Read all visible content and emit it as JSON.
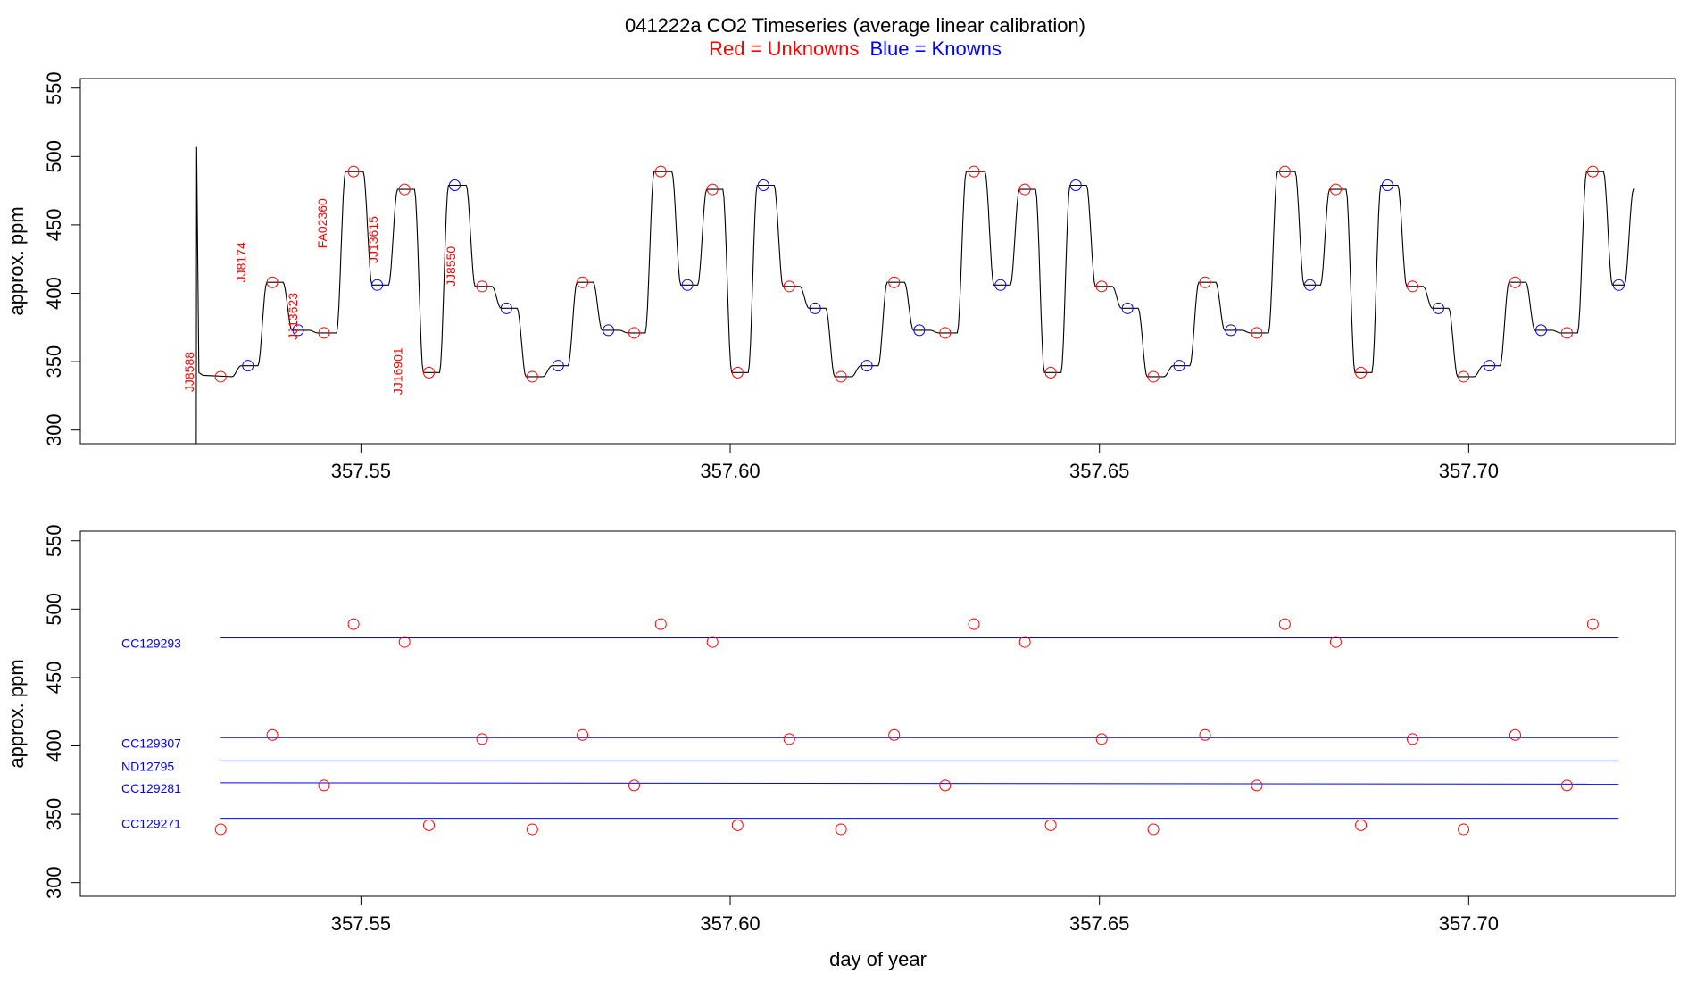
{
  "title": {
    "main": "041222a   CO2 Timeseries (average linear calibration)",
    "legend_red": "Red = Unknowns",
    "legend_blue": "Blue = Knowns",
    "red_color": "#ff0000",
    "blue_color": "#0000ff"
  },
  "chart_data": [
    {
      "type": "line",
      "panel": "timeseries",
      "xlim": [
        357.512,
        357.728
      ],
      "ylim": [
        290,
        557
      ],
      "x_ticks": [
        357.55,
        357.6,
        357.65,
        357.7
      ],
      "x_tick_labels": [
        "357.55",
        "357.60",
        "357.65",
        "357.70"
      ],
      "y_ticks": [
        300,
        350,
        400,
        450,
        500,
        550
      ],
      "y_tick_labels": [
        "300",
        "350",
        "400",
        "450",
        "500",
        "550"
      ],
      "ylabel": "approx. ppm",
      "xlabel": "",
      "line_color": "#000000",
      "spike": {
        "x": 357.5277,
        "y_bottom": 290,
        "y_top": 507,
        "y_base": 342
      },
      "trace_end_x": 357.7225,
      "levels": [
        {
          "x": 357.531,
          "y": 339,
          "type": "unknown",
          "label": "JJ8588"
        },
        {
          "x": 357.5347,
          "y": 347,
          "type": "known",
          "label": ""
        },
        {
          "x": 357.538,
          "y": 408,
          "type": "unknown",
          "label": "JJ8174"
        },
        {
          "x": 357.5415,
          "y": 373,
          "type": "known",
          "label": ""
        },
        {
          "x": 357.545,
          "y": 371,
          "type": "unknown",
          "label": "JJ13623"
        },
        {
          "x": 357.549,
          "y": 489,
          "type": "unknown",
          "label": "FA02360"
        },
        {
          "x": 357.5522,
          "y": 406,
          "type": "known",
          "label": ""
        },
        {
          "x": 357.5559,
          "y": 476,
          "type": "unknown",
          "label": "JJ13615"
        },
        {
          "x": 357.5592,
          "y": 342,
          "type": "unknown",
          "label": "JJ16901"
        },
        {
          "x": 357.5627,
          "y": 479,
          "type": "known",
          "label": ""
        },
        {
          "x": 357.5664,
          "y": 405,
          "type": "unknown",
          "label": "JJ8550"
        },
        {
          "x": 357.5697,
          "y": 389,
          "type": "known",
          "label": ""
        },
        {
          "x": 357.5732,
          "y": 339,
          "type": "unknown",
          "label": ""
        },
        {
          "x": 357.5767,
          "y": 347,
          "type": "known",
          "label": ""
        },
        {
          "x": 357.58,
          "y": 408,
          "type": "unknown",
          "label": ""
        },
        {
          "x": 357.5835,
          "y": 373,
          "type": "known",
          "label": ""
        },
        {
          "x": 357.587,
          "y": 371,
          "type": "unknown",
          "label": ""
        },
        {
          "x": 357.5906,
          "y": 489,
          "type": "unknown",
          "label": ""
        },
        {
          "x": 357.5942,
          "y": 406,
          "type": "known",
          "label": ""
        },
        {
          "x": 357.5976,
          "y": 476,
          "type": "unknown",
          "label": ""
        },
        {
          "x": 357.601,
          "y": 342,
          "type": "unknown",
          "label": ""
        },
        {
          "x": 357.6045,
          "y": 479,
          "type": "known",
          "label": ""
        },
        {
          "x": 357.608,
          "y": 405,
          "type": "unknown",
          "label": ""
        },
        {
          "x": 357.6115,
          "y": 389,
          "type": "known",
          "label": ""
        },
        {
          "x": 357.615,
          "y": 339,
          "type": "unknown",
          "label": ""
        },
        {
          "x": 357.6185,
          "y": 347,
          "type": "known",
          "label": ""
        },
        {
          "x": 357.6222,
          "y": 408,
          "type": "unknown",
          "label": ""
        },
        {
          "x": 357.6256,
          "y": 373,
          "type": "known",
          "label": ""
        },
        {
          "x": 357.6291,
          "y": 371,
          "type": "unknown",
          "label": ""
        },
        {
          "x": 357.633,
          "y": 489,
          "type": "unknown",
          "label": ""
        },
        {
          "x": 357.6366,
          "y": 406,
          "type": "known",
          "label": ""
        },
        {
          "x": 357.6399,
          "y": 476,
          "type": "unknown",
          "label": ""
        },
        {
          "x": 357.6434,
          "y": 342,
          "type": "unknown",
          "label": ""
        },
        {
          "x": 357.6468,
          "y": 479,
          "type": "known",
          "label": ""
        },
        {
          "x": 357.6503,
          "y": 405,
          "type": "unknown",
          "label": ""
        },
        {
          "x": 357.6538,
          "y": 389,
          "type": "known",
          "label": ""
        },
        {
          "x": 357.6573,
          "y": 339,
          "type": "unknown",
          "label": ""
        },
        {
          "x": 357.6608,
          "y": 347,
          "type": "known",
          "label": ""
        },
        {
          "x": 357.6643,
          "y": 408,
          "type": "unknown",
          "label": ""
        },
        {
          "x": 357.6678,
          "y": 373,
          "type": "known",
          "label": ""
        },
        {
          "x": 357.6713,
          "y": 371,
          "type": "unknown",
          "label": ""
        },
        {
          "x": 357.6751,
          "y": 489,
          "type": "unknown",
          "label": ""
        },
        {
          "x": 357.6785,
          "y": 406,
          "type": "known",
          "label": ""
        },
        {
          "x": 357.682,
          "y": 476,
          "type": "unknown",
          "label": ""
        },
        {
          "x": 357.6854,
          "y": 342,
          "type": "unknown",
          "label": ""
        },
        {
          "x": 357.689,
          "y": 479,
          "type": "known",
          "label": ""
        },
        {
          "x": 357.6924,
          "y": 405,
          "type": "unknown",
          "label": ""
        },
        {
          "x": 357.6959,
          "y": 389,
          "type": "known",
          "label": ""
        },
        {
          "x": 357.6993,
          "y": 339,
          "type": "unknown",
          "label": ""
        },
        {
          "x": 357.7028,
          "y": 347,
          "type": "known",
          "label": ""
        },
        {
          "x": 357.7063,
          "y": 408,
          "type": "unknown",
          "label": ""
        },
        {
          "x": 357.7098,
          "y": 373,
          "type": "known",
          "label": ""
        },
        {
          "x": 357.7133,
          "y": 371,
          "type": "unknown",
          "label": ""
        },
        {
          "x": 357.7168,
          "y": 489,
          "type": "unknown",
          "label": ""
        },
        {
          "x": 357.7203,
          "y": 406,
          "type": "known",
          "label": ""
        },
        {
          "x": 357.7225,
          "y": 476,
          "type": "none",
          "label": ""
        }
      ]
    },
    {
      "type": "scatter",
      "panel": "calibration",
      "xlim": [
        357.512,
        357.728
      ],
      "ylim": [
        290,
        557
      ],
      "x_ticks": [
        357.55,
        357.6,
        357.65,
        357.7
      ],
      "x_tick_labels": [
        "357.55",
        "357.60",
        "357.65",
        "357.70"
      ],
      "y_ticks": [
        300,
        350,
        400,
        450,
        500,
        550
      ],
      "y_tick_labels": [
        "300",
        "350",
        "400",
        "450",
        "500",
        "550"
      ],
      "ylabel": "approx. ppm",
      "xlabel": "day of year",
      "standards": [
        {
          "name": "CC129293",
          "y_start": 479,
          "y_end": 479,
          "x_start": 357.531,
          "x_end": 357.7203
        },
        {
          "name": "CC129307",
          "y_start": 406,
          "y_end": 406,
          "x_start": 357.531,
          "x_end": 357.7203
        },
        {
          "name": "ND12795",
          "y_start": 389,
          "y_end": 389,
          "x_start": 357.531,
          "x_end": 357.7203
        },
        {
          "name": "CC129281",
          "y_start": 373,
          "y_end": 372,
          "x_start": 357.531,
          "x_end": 357.7203
        },
        {
          "name": "CC129271",
          "y_start": 347,
          "y_end": 347,
          "x_start": 357.531,
          "x_end": 357.7203
        }
      ],
      "points": [
        {
          "x": 357.531,
          "y": 339
        },
        {
          "x": 357.538,
          "y": 408
        },
        {
          "x": 357.545,
          "y": 371
        },
        {
          "x": 357.549,
          "y": 489
        },
        {
          "x": 357.5559,
          "y": 476
        },
        {
          "x": 357.5592,
          "y": 342
        },
        {
          "x": 357.5664,
          "y": 405
        },
        {
          "x": 357.5732,
          "y": 339
        },
        {
          "x": 357.58,
          "y": 408
        },
        {
          "x": 357.587,
          "y": 371
        },
        {
          "x": 357.5906,
          "y": 489
        },
        {
          "x": 357.5976,
          "y": 476
        },
        {
          "x": 357.601,
          "y": 342
        },
        {
          "x": 357.608,
          "y": 405
        },
        {
          "x": 357.615,
          "y": 339
        },
        {
          "x": 357.6222,
          "y": 408
        },
        {
          "x": 357.6291,
          "y": 371
        },
        {
          "x": 357.633,
          "y": 489
        },
        {
          "x": 357.6399,
          "y": 476
        },
        {
          "x": 357.6434,
          "y": 342
        },
        {
          "x": 357.6503,
          "y": 405
        },
        {
          "x": 357.6573,
          "y": 339
        },
        {
          "x": 357.6643,
          "y": 408
        },
        {
          "x": 357.6713,
          "y": 371
        },
        {
          "x": 357.6751,
          "y": 489
        },
        {
          "x": 357.682,
          "y": 476
        },
        {
          "x": 357.6854,
          "y": 342
        },
        {
          "x": 357.6924,
          "y": 405
        },
        {
          "x": 357.6993,
          "y": 339
        },
        {
          "x": 357.7063,
          "y": 408
        },
        {
          "x": 357.7133,
          "y": 371
        },
        {
          "x": 357.7168,
          "y": 489
        }
      ]
    }
  ]
}
